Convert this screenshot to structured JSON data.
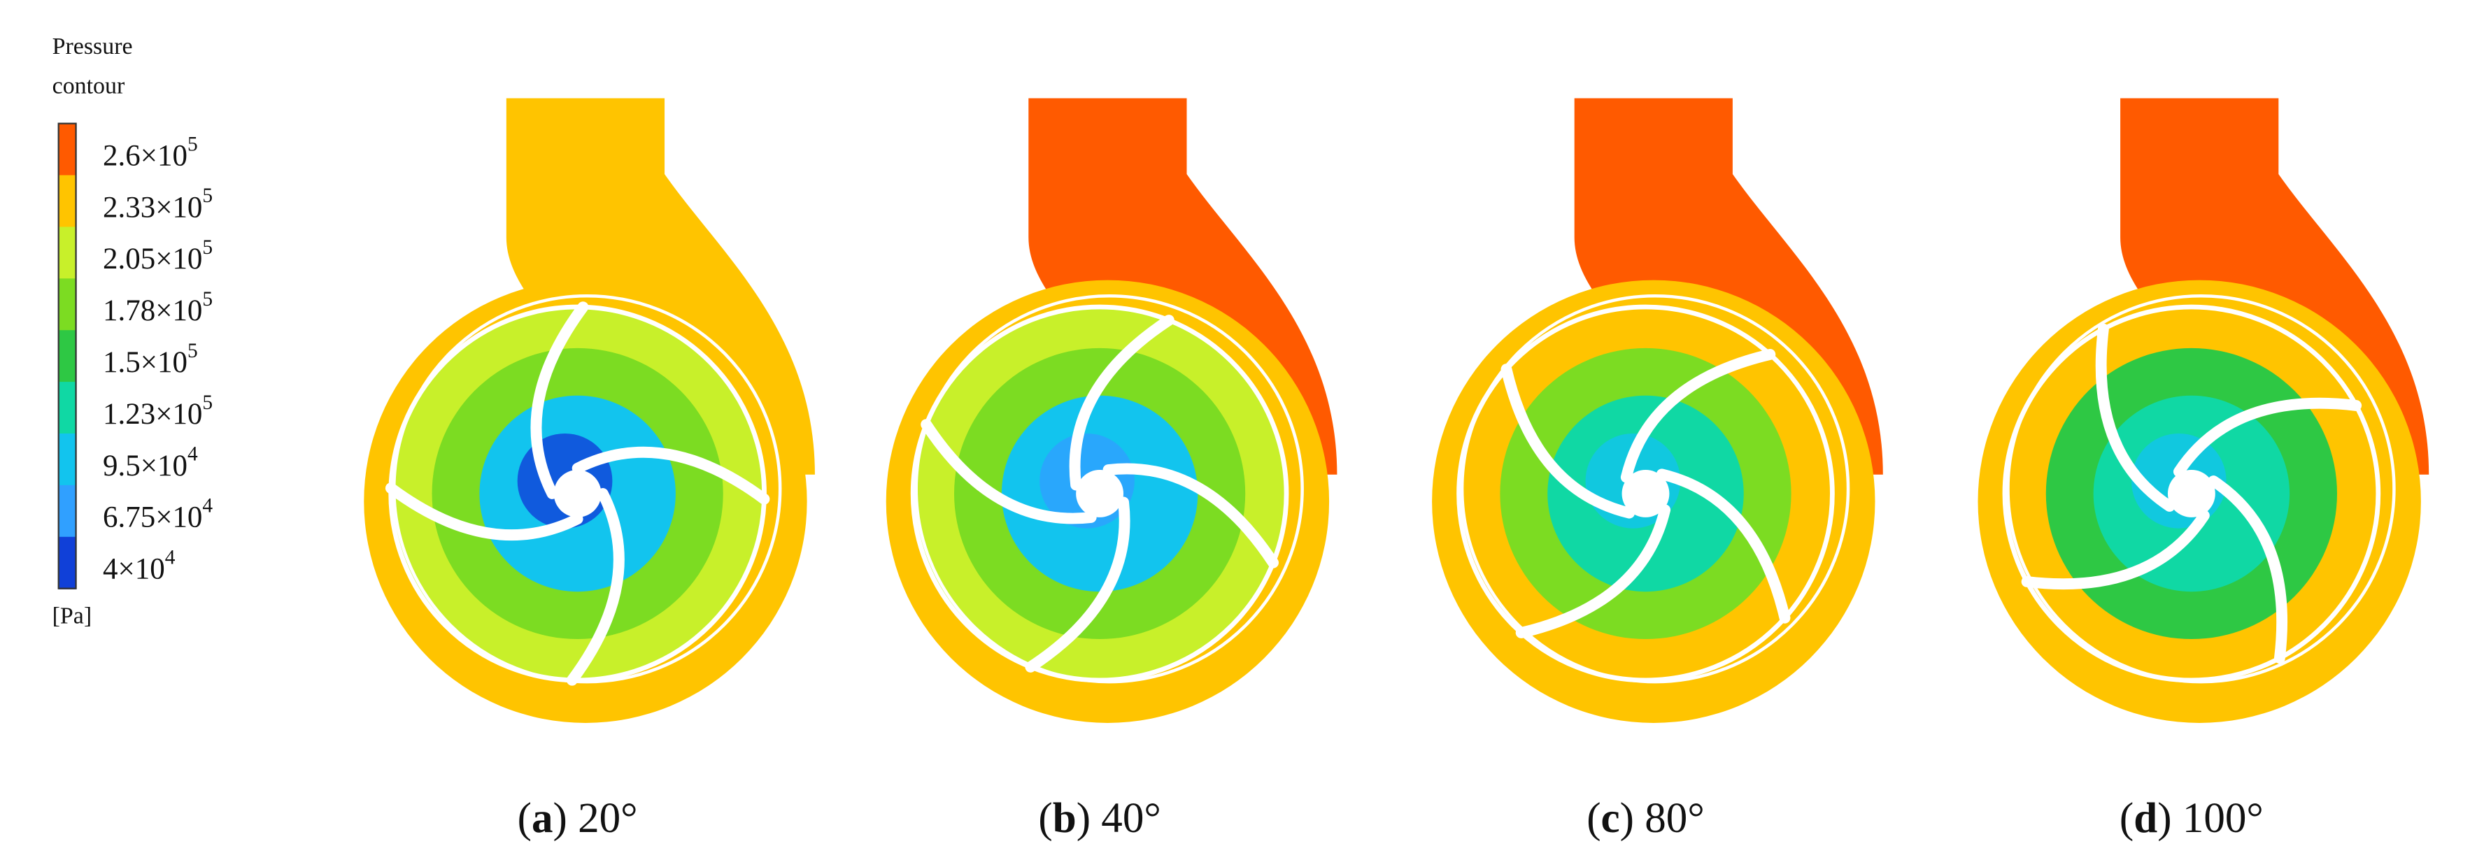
{
  "legend": {
    "title_lines": [
      "Pressure",
      "contour"
    ],
    "levels": [
      {
        "base": "2.6×10",
        "exponent": "5",
        "color": "#ff5a00"
      },
      {
        "base": "2.33×10",
        "exponent": "5",
        "color": "#ffc400"
      },
      {
        "base": "2.05×10",
        "exponent": "5",
        "color": "#c8f02a"
      },
      {
        "base": "1.78×10",
        "exponent": "5",
        "color": "#7cdc22"
      },
      {
        "base": "1.5×10",
        "exponent": "5",
        "color": "#2ec844"
      },
      {
        "base": "1.23×10",
        "exponent": "5",
        "color": "#10d8a4"
      },
      {
        "base": "9.5×10",
        "exponent": "4",
        "color": "#12c4ee"
      },
      {
        "base": "6.75×10",
        "exponent": "4",
        "color": "#30a0ff"
      },
      {
        "base": "4×10",
        "exponent": "4",
        "color": "#1040d8"
      }
    ],
    "unit": "[Pa]"
  },
  "panels": [
    {
      "caption": [
        "(",
        "a",
        ") 20°"
      ]
    },
    {
      "caption": [
        "(",
        "b",
        ") 40°"
      ]
    },
    {
      "caption": [
        "(",
        "c",
        ") 80°"
      ]
    },
    {
      "caption": [
        "(",
        "d",
        ") 100°"
      ]
    }
  ]
}
